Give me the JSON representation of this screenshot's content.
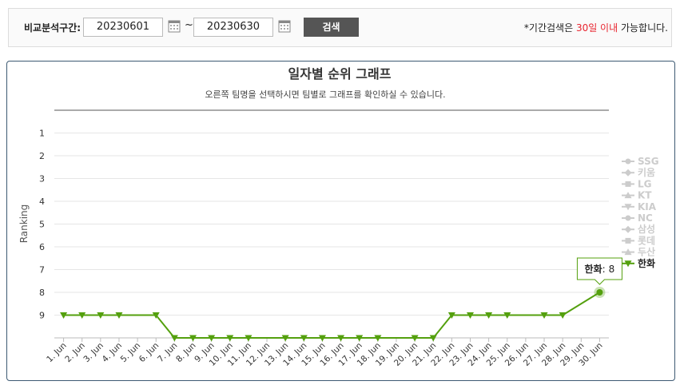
{
  "search": {
    "label": "비교분석구간:",
    "start": "20230601",
    "separator": "~",
    "end": "20230630",
    "button": "검색",
    "note_before": "*기간검색은 ",
    "note_highlight": "30일 이내",
    "note_after": " 가능합니다."
  },
  "chart_data": {
    "type": "line",
    "title": "일자별 순위 그래프",
    "subtitle": "오른쪽 팀명을 선택하시면 팀별로 그래프를 확인하실 수 있습니다.",
    "y_label": "Ranking",
    "ylim": [
      0,
      10
    ],
    "reversed": true,
    "yticks": [
      1,
      2,
      3,
      4,
      5,
      6,
      7,
      8,
      9
    ],
    "grid": true,
    "categories": [
      "1. Jun",
      "2. Jun",
      "3. Jun",
      "4. Jun",
      "5. Jun",
      "6. Jun",
      "7. Jun",
      "8. Jun",
      "9. Jun",
      "10. Jun",
      "11. Jun",
      "12. Jun",
      "13. Jun",
      "14. Jun",
      "15. Jun",
      "16. Jun",
      "17. Jun",
      "18. Jun",
      "19. Jun",
      "20. Jun",
      "21. Jun",
      "22. Jun",
      "23. Jun",
      "24. Jun",
      "25. Jun",
      "26. Jun",
      "27. Jun",
      "28. Jun",
      "29. Jun",
      "30. Jun"
    ],
    "legend_position": "right",
    "connect_gaps": true,
    "series": [
      {
        "name": "SSG",
        "marker": "circle",
        "visible": false
      },
      {
        "name": "키움",
        "marker": "diamond",
        "visible": false
      },
      {
        "name": "LG",
        "marker": "square",
        "visible": false
      },
      {
        "name": "KT",
        "marker": "triangle",
        "visible": false
      },
      {
        "name": "KIA",
        "marker": "triangle-down",
        "visible": false
      },
      {
        "name": "NC",
        "marker": "circle",
        "visible": false
      },
      {
        "name": "삼성",
        "marker": "diamond",
        "visible": false
      },
      {
        "name": "롯데",
        "marker": "square",
        "visible": false
      },
      {
        "name": "두산",
        "marker": "triangle",
        "visible": false
      },
      {
        "name": "한화",
        "marker": "triangle-down",
        "visible": true,
        "color": "#54a00e",
        "values": [
          9,
          9,
          9,
          9,
          null,
          9,
          10,
          10,
          10,
          10,
          10,
          null,
          10,
          10,
          10,
          10,
          10,
          10,
          null,
          10,
          10,
          9,
          9,
          9,
          9,
          null,
          9,
          9,
          null,
          8
        ]
      }
    ],
    "tooltip": {
      "series": 9,
      "point": 29,
      "separator": ":"
    }
  }
}
